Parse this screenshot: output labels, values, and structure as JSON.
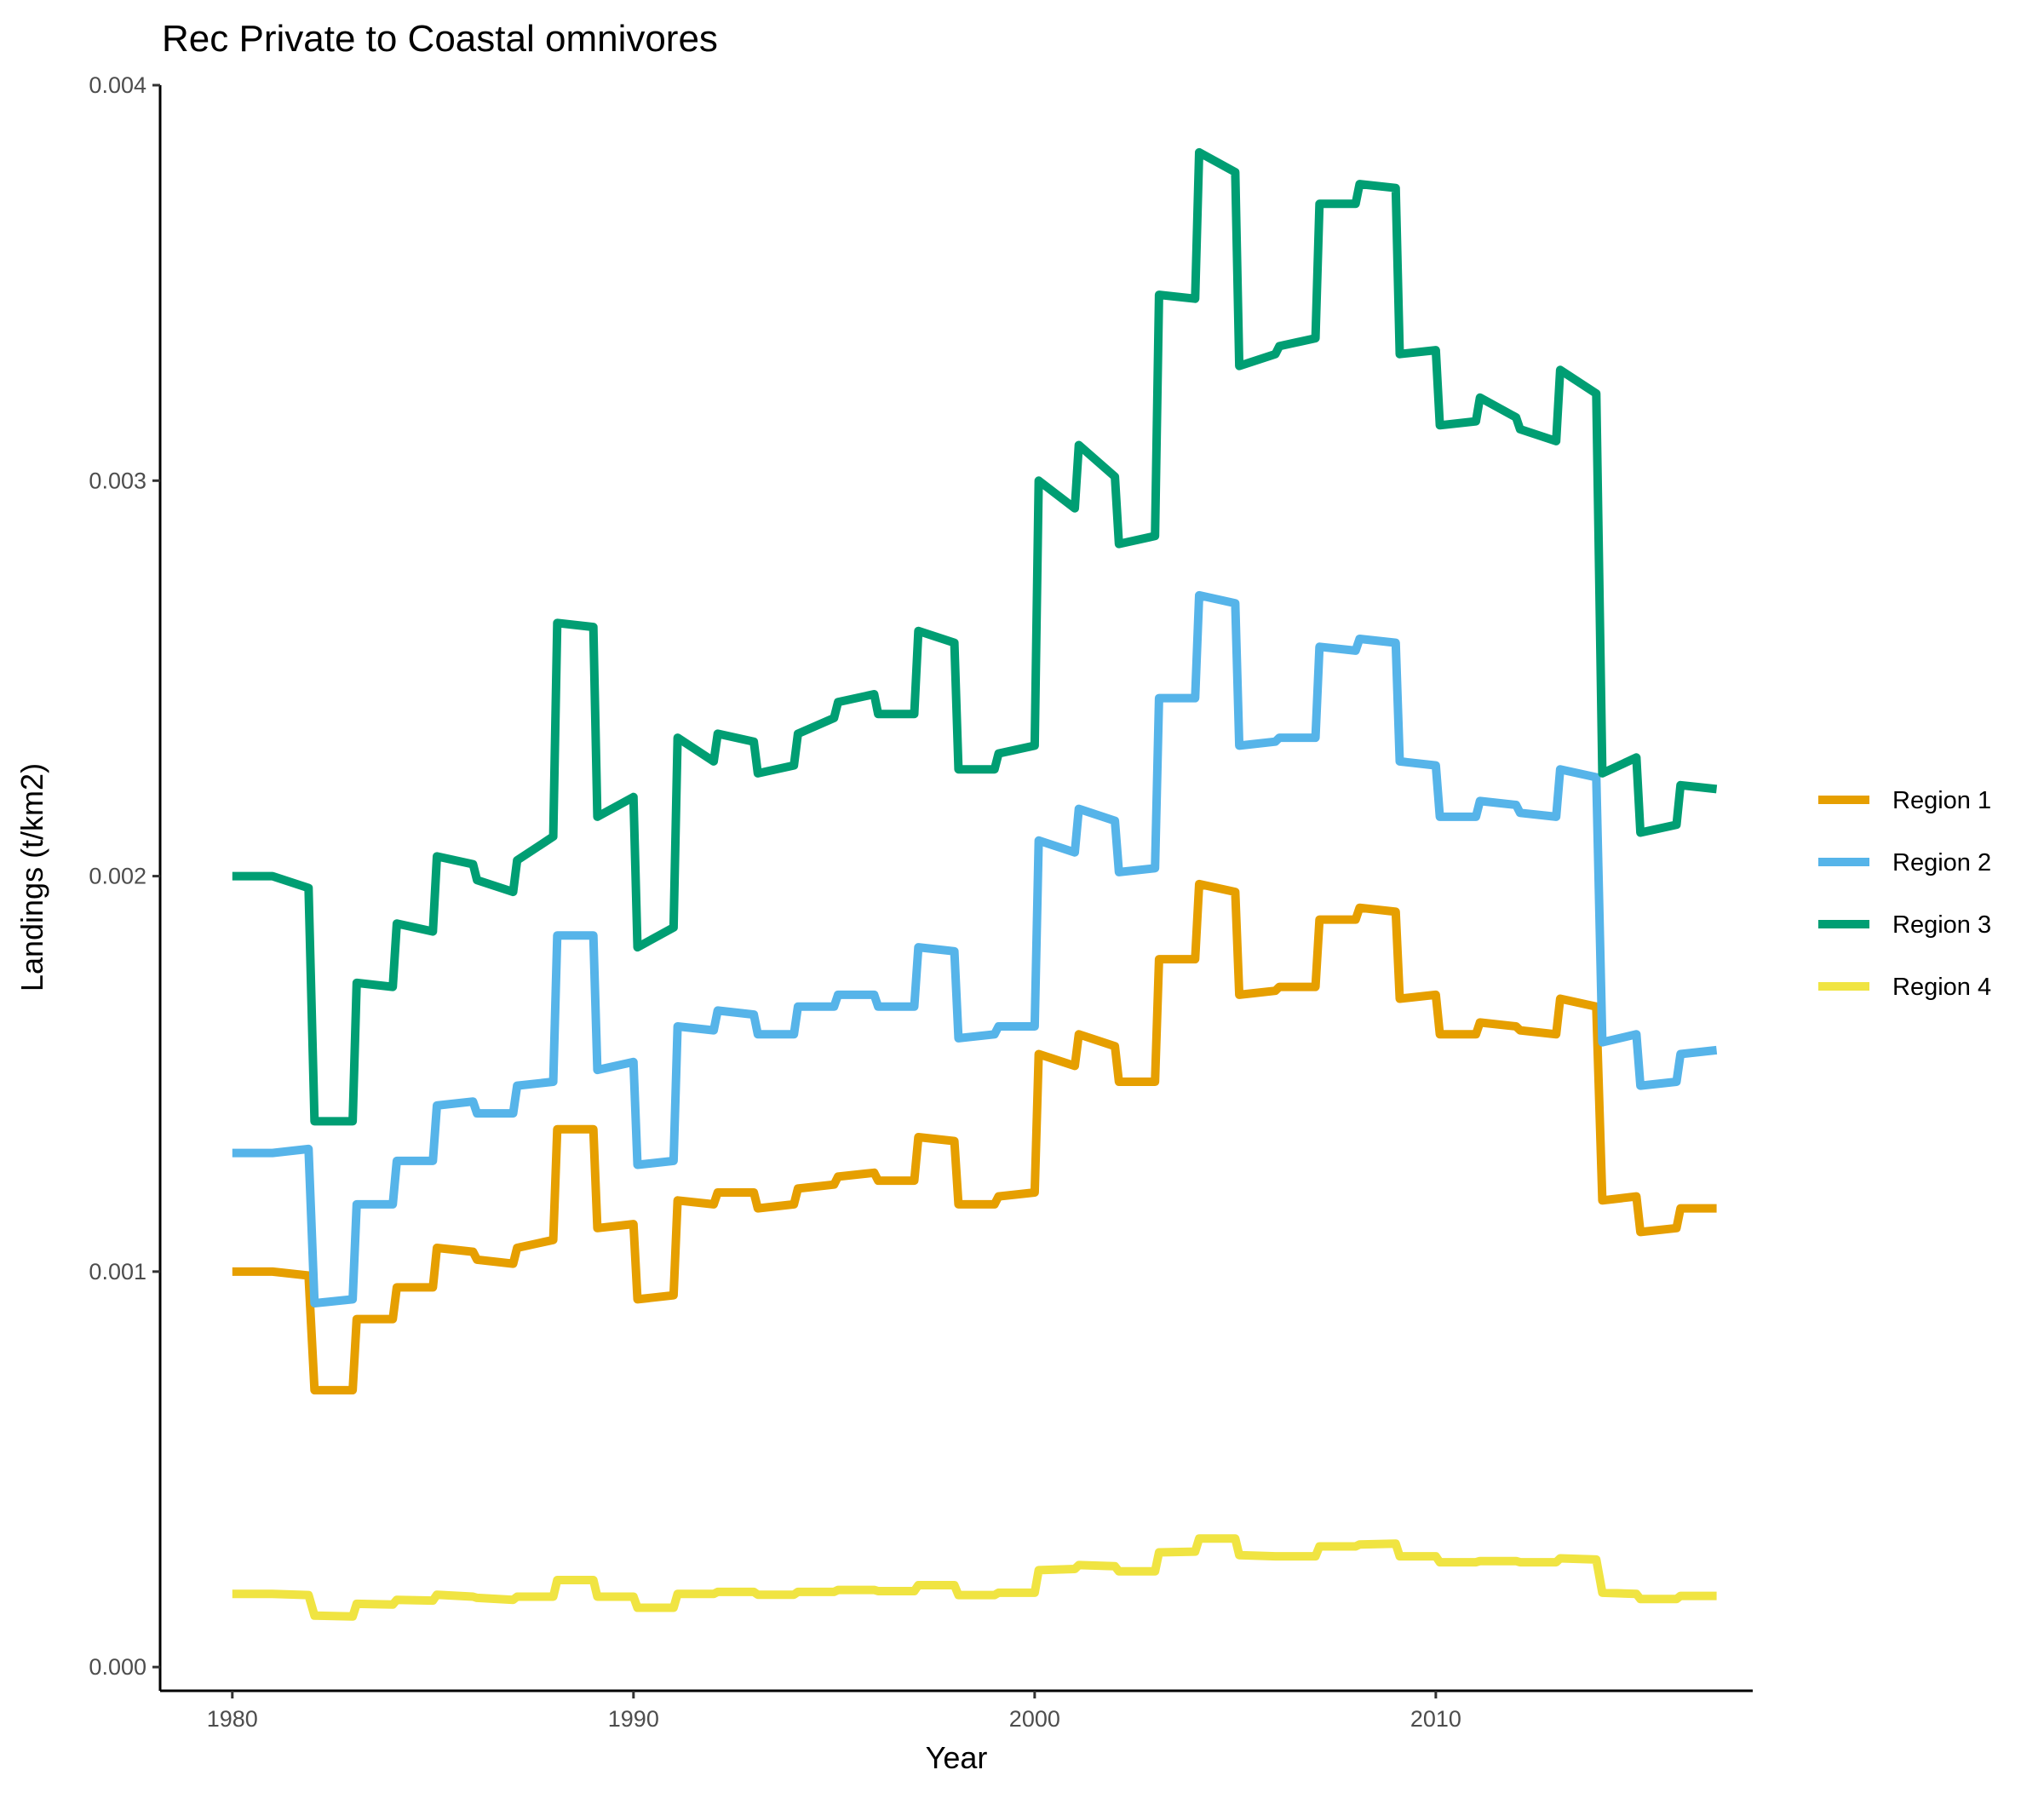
{
  "chart_data": {
    "type": "line",
    "title": "Rec Private to Coastal omnivores",
    "xlabel": "Year",
    "ylabel": "Landings (t/km2)",
    "xlim": [
      1978.2,
      2017.9
    ],
    "ylim": [
      -6e-05,
      0.004
    ],
    "x_ticks": [
      1980,
      1990,
      2000,
      2010
    ],
    "x_tick_labels": [
      "1980",
      "1990",
      "2000",
      "2010"
    ],
    "y_ticks": [
      0,
      0.001,
      0.002,
      0.003,
      0.004
    ],
    "y_tick_labels": [
      "0.000",
      "0.001",
      "0.002",
      "0.003",
      "0.004"
    ],
    "grid": false,
    "legend_position": "right",
    "series": [
      {
        "name": "Region 1",
        "color": "#E69F00",
        "points": [
          [
            1980,
            0.001
          ],
          [
            1981,
            0.001
          ],
          [
            1981.9,
            0.00099
          ],
          [
            1982.05,
            0.0007
          ],
          [
            1983,
            0.0007
          ],
          [
            1983.1,
            0.00088
          ],
          [
            1984,
            0.00088
          ],
          [
            1984.1,
            0.00096
          ],
          [
            1985,
            0.00096
          ],
          [
            1985.1,
            0.00106
          ],
          [
            1986,
            0.00105
          ],
          [
            1986.1,
            0.00103
          ],
          [
            1987,
            0.00102
          ],
          [
            1987.1,
            0.00106
          ],
          [
            1988,
            0.00108
          ],
          [
            1988.1,
            0.00136
          ],
          [
            1989,
            0.00136
          ],
          [
            1989.1,
            0.00111
          ],
          [
            1990,
            0.00112
          ],
          [
            1990.1,
            0.00093
          ],
          [
            1991,
            0.00094
          ],
          [
            1991.1,
            0.00118
          ],
          [
            1992,
            0.00117
          ],
          [
            1992.1,
            0.0012
          ],
          [
            1993,
            0.0012
          ],
          [
            1993.1,
            0.00116
          ],
          [
            1994,
            0.00117
          ],
          [
            1994.1,
            0.00121
          ],
          [
            1995,
            0.00122
          ],
          [
            1995.1,
            0.00124
          ],
          [
            1996,
            0.00125
          ],
          [
            1996.1,
            0.00123
          ],
          [
            1997,
            0.00123
          ],
          [
            1997.1,
            0.00134
          ],
          [
            1998,
            0.00133
          ],
          [
            1998.1,
            0.00117
          ],
          [
            1999,
            0.00117
          ],
          [
            1999.1,
            0.00119
          ],
          [
            2000,
            0.0012
          ],
          [
            2000.1,
            0.00155
          ],
          [
            2001,
            0.00152
          ],
          [
            2001.1,
            0.0016
          ],
          [
            2002,
            0.00157
          ],
          [
            2002.1,
            0.00148
          ],
          [
            2003,
            0.00148
          ],
          [
            2003.1,
            0.00179
          ],
          [
            2004,
            0.00179
          ],
          [
            2004.1,
            0.00198
          ],
          [
            2005,
            0.00196
          ],
          [
            2005.1,
            0.0017
          ],
          [
            2006,
            0.00171
          ],
          [
            2006.1,
            0.00172
          ],
          [
            2007,
            0.00172
          ],
          [
            2007.1,
            0.00189
          ],
          [
            2008,
            0.00189
          ],
          [
            2008.1,
            0.00192
          ],
          [
            2009,
            0.00191
          ],
          [
            2009.1,
            0.00169
          ],
          [
            2010,
            0.0017
          ],
          [
            2010.1,
            0.0016
          ],
          [
            2011,
            0.0016
          ],
          [
            2011.1,
            0.00163
          ],
          [
            2012,
            0.00162
          ],
          [
            2012.1,
            0.00161
          ],
          [
            2013,
            0.0016
          ],
          [
            2013.1,
            0.00169
          ],
          [
            2014,
            0.00167
          ],
          [
            2014.15,
            0.00118
          ],
          [
            2015,
            0.00119
          ],
          [
            2015.1,
            0.0011
          ],
          [
            2016,
            0.00111
          ],
          [
            2016.1,
            0.00116
          ],
          [
            2017,
            0.00116
          ]
        ]
      },
      {
        "name": "Region 2",
        "color": "#56B4E9",
        "points": [
          [
            1980,
            0.0013
          ],
          [
            1981,
            0.0013
          ],
          [
            1981.9,
            0.00131
          ],
          [
            1982.05,
            0.00092
          ],
          [
            1983,
            0.00093
          ],
          [
            1983.1,
            0.00117
          ],
          [
            1984,
            0.00117
          ],
          [
            1984.1,
            0.00128
          ],
          [
            1985,
            0.00128
          ],
          [
            1985.1,
            0.00142
          ],
          [
            1986,
            0.00143
          ],
          [
            1986.1,
            0.0014
          ],
          [
            1987,
            0.0014
          ],
          [
            1987.1,
            0.00147
          ],
          [
            1988,
            0.00148
          ],
          [
            1988.1,
            0.00185
          ],
          [
            1989,
            0.00185
          ],
          [
            1989.1,
            0.00151
          ],
          [
            1990,
            0.00153
          ],
          [
            1990.1,
            0.00127
          ],
          [
            1991,
            0.00128
          ],
          [
            1991.1,
            0.00162
          ],
          [
            1992,
            0.00161
          ],
          [
            1992.1,
            0.00166
          ],
          [
            1993,
            0.00165
          ],
          [
            1993.1,
            0.0016
          ],
          [
            1994,
            0.0016
          ],
          [
            1994.1,
            0.00167
          ],
          [
            1995,
            0.00167
          ],
          [
            1995.1,
            0.0017
          ],
          [
            1996,
            0.0017
          ],
          [
            1996.1,
            0.00167
          ],
          [
            1997,
            0.00167
          ],
          [
            1997.1,
            0.00182
          ],
          [
            1998,
            0.00181
          ],
          [
            1998.1,
            0.00159
          ],
          [
            1999,
            0.0016
          ],
          [
            1999.1,
            0.00162
          ],
          [
            2000,
            0.00162
          ],
          [
            2000.1,
            0.00209
          ],
          [
            2001,
            0.00206
          ],
          [
            2001.1,
            0.00217
          ],
          [
            2002,
            0.00214
          ],
          [
            2002.1,
            0.00201
          ],
          [
            2003,
            0.00202
          ],
          [
            2003.1,
            0.00245
          ],
          [
            2004,
            0.00245
          ],
          [
            2004.1,
            0.00271
          ],
          [
            2005,
            0.00269
          ],
          [
            2005.1,
            0.00233
          ],
          [
            2006,
            0.00234
          ],
          [
            2006.1,
            0.00235
          ],
          [
            2007,
            0.00235
          ],
          [
            2007.1,
            0.00258
          ],
          [
            2008,
            0.00257
          ],
          [
            2008.1,
            0.0026
          ],
          [
            2009,
            0.00259
          ],
          [
            2009.1,
            0.00229
          ],
          [
            2010,
            0.00228
          ],
          [
            2010.1,
            0.00215
          ],
          [
            2011,
            0.00215
          ],
          [
            2011.1,
            0.00219
          ],
          [
            2012,
            0.00218
          ],
          [
            2012.1,
            0.00216
          ],
          [
            2013,
            0.00215
          ],
          [
            2013.1,
            0.00227
          ],
          [
            2014,
            0.00225
          ],
          [
            2014.15,
            0.00158
          ],
          [
            2015,
            0.0016
          ],
          [
            2015.1,
            0.00147
          ],
          [
            2016,
            0.00148
          ],
          [
            2016.1,
            0.00155
          ],
          [
            2017,
            0.00156
          ]
        ]
      },
      {
        "name": "Region 3",
        "color": "#009E73",
        "points": [
          [
            1980,
            0.002
          ],
          [
            1981,
            0.002
          ],
          [
            1981.9,
            0.00197
          ],
          [
            1982.05,
            0.00138
          ],
          [
            1983,
            0.00138
          ],
          [
            1983.1,
            0.00173
          ],
          [
            1984,
            0.00172
          ],
          [
            1984.1,
            0.00188
          ],
          [
            1985,
            0.00186
          ],
          [
            1985.1,
            0.00205
          ],
          [
            1986,
            0.00203
          ],
          [
            1986.1,
            0.00199
          ],
          [
            1987,
            0.00196
          ],
          [
            1987.1,
            0.00204
          ],
          [
            1988,
            0.0021
          ],
          [
            1988.1,
            0.00264
          ],
          [
            1989,
            0.00263
          ],
          [
            1989.1,
            0.00215
          ],
          [
            1990,
            0.0022
          ],
          [
            1990.1,
            0.00182
          ],
          [
            1991,
            0.00187
          ],
          [
            1991.1,
            0.00235
          ],
          [
            1992,
            0.00229
          ],
          [
            1992.1,
            0.00236
          ],
          [
            1993,
            0.00234
          ],
          [
            1993.1,
            0.00226
          ],
          [
            1994,
            0.00228
          ],
          [
            1994.1,
            0.00236
          ],
          [
            1995,
            0.0024
          ],
          [
            1995.1,
            0.00244
          ],
          [
            1996,
            0.00246
          ],
          [
            1996.1,
            0.00241
          ],
          [
            1997,
            0.00241
          ],
          [
            1997.1,
            0.00262
          ],
          [
            1998,
            0.00259
          ],
          [
            1998.1,
            0.00227
          ],
          [
            1999,
            0.00227
          ],
          [
            1999.1,
            0.00231
          ],
          [
            2000,
            0.00233
          ],
          [
            2000.1,
            0.003
          ],
          [
            2001,
            0.00293
          ],
          [
            2001.1,
            0.00309
          ],
          [
            2002,
            0.00301
          ],
          [
            2002.1,
            0.00284
          ],
          [
            2003,
            0.00286
          ],
          [
            2003.1,
            0.00347
          ],
          [
            2004,
            0.00346
          ],
          [
            2004.1,
            0.00383
          ],
          [
            2005,
            0.00378
          ],
          [
            2005.1,
            0.00329
          ],
          [
            2006,
            0.00332
          ],
          [
            2006.1,
            0.00334
          ],
          [
            2007,
            0.00336
          ],
          [
            2007.1,
            0.0037
          ],
          [
            2008,
            0.0037
          ],
          [
            2008.1,
            0.00375
          ],
          [
            2009,
            0.00374
          ],
          [
            2009.1,
            0.00332
          ],
          [
            2010,
            0.00333
          ],
          [
            2010.1,
            0.00314
          ],
          [
            2011,
            0.00315
          ],
          [
            2011.1,
            0.00321
          ],
          [
            2012,
            0.00316
          ],
          [
            2012.1,
            0.00313
          ],
          [
            2013,
            0.0031
          ],
          [
            2013.1,
            0.00328
          ],
          [
            2014,
            0.00322
          ],
          [
            2014.15,
            0.00226
          ],
          [
            2015,
            0.0023
          ],
          [
            2015.1,
            0.00211
          ],
          [
            2016,
            0.00213
          ],
          [
            2016.1,
            0.00223
          ],
          [
            2017,
            0.00222
          ]
        ]
      },
      {
        "name": "Region 4",
        "color": "#F0E442",
        "points": [
          [
            1980,
            0.000185
          ],
          [
            1981,
            0.000185
          ],
          [
            1981.9,
            0.000182
          ],
          [
            1982.05,
            0.00013
          ],
          [
            1983,
            0.000128
          ],
          [
            1983.1,
            0.00016
          ],
          [
            1984,
            0.000158
          ],
          [
            1984.1,
            0.00017
          ],
          [
            1985,
            0.000168
          ],
          [
            1985.1,
            0.000183
          ],
          [
            1986,
            0.000178
          ],
          [
            1986.1,
            0.000175
          ],
          [
            1987,
            0.00017
          ],
          [
            1987.1,
            0.000178
          ],
          [
            1988,
            0.000178
          ],
          [
            1988.1,
            0.00022
          ],
          [
            1989,
            0.00022
          ],
          [
            1989.1,
            0.000178
          ],
          [
            1990,
            0.000178
          ],
          [
            1990.1,
            0.00015
          ],
          [
            1991,
            0.00015
          ],
          [
            1991.1,
            0.000185
          ],
          [
            1992,
            0.000185
          ],
          [
            1992.1,
            0.00019
          ],
          [
            1993,
            0.00019
          ],
          [
            1993.1,
            0.000183
          ],
          [
            1994,
            0.000183
          ],
          [
            1994.1,
            0.00019
          ],
          [
            1995,
            0.00019
          ],
          [
            1995.1,
            0.000195
          ],
          [
            1996,
            0.000195
          ],
          [
            1996.1,
            0.000192
          ],
          [
            1997,
            0.000192
          ],
          [
            1997.1,
            0.000207
          ],
          [
            1998,
            0.000207
          ],
          [
            1998.1,
            0.000182
          ],
          [
            1999,
            0.000182
          ],
          [
            1999.1,
            0.000188
          ],
          [
            2000,
            0.000188
          ],
          [
            2000.1,
            0.000245
          ],
          [
            2001,
            0.000248
          ],
          [
            2001.1,
            0.000258
          ],
          [
            2002,
            0.000255
          ],
          [
            2002.1,
            0.000242
          ],
          [
            2003,
            0.000242
          ],
          [
            2003.1,
            0.00029
          ],
          [
            2004,
            0.000292
          ],
          [
            2004.1,
            0.000325
          ],
          [
            2005,
            0.000325
          ],
          [
            2005.1,
            0.000283
          ],
          [
            2006,
            0.00028
          ],
          [
            2006.1,
            0.00028
          ],
          [
            2007,
            0.00028
          ],
          [
            2007.1,
            0.000305
          ],
          [
            2008,
            0.000305
          ],
          [
            2008.1,
            0.00031
          ],
          [
            2009,
            0.000312
          ],
          [
            2009.1,
            0.00028
          ],
          [
            2010,
            0.00028
          ],
          [
            2010.1,
            0.000265
          ],
          [
            2011,
            0.000265
          ],
          [
            2011.1,
            0.000268
          ],
          [
            2012,
            0.000268
          ],
          [
            2012.1,
            0.000265
          ],
          [
            2013,
            0.000265
          ],
          [
            2013.1,
            0.000275
          ],
          [
            2014,
            0.000272
          ],
          [
            2014.15,
            0.000188
          ],
          [
            2015,
            0.000185
          ],
          [
            2015.1,
            0.000172
          ],
          [
            2016,
            0.000172
          ],
          [
            2016.1,
            0.00018
          ],
          [
            2017,
            0.00018
          ]
        ]
      }
    ]
  }
}
